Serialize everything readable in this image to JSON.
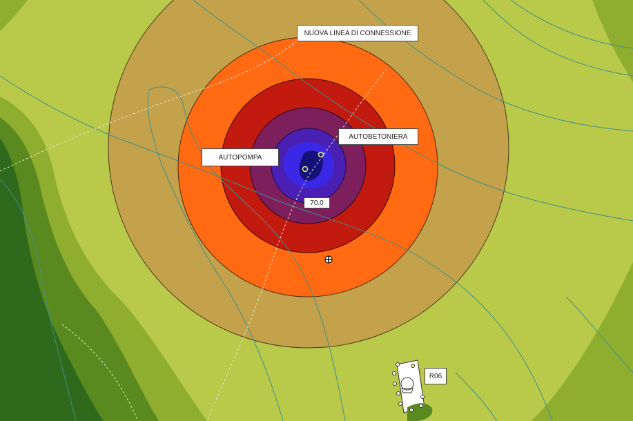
{
  "labels": {
    "connection_line": "NUOVA LINEA DI CONNESSIONE",
    "concrete_mixer": "AUTOBETONIERA",
    "concrete_pump": "AUTOPOMPA",
    "center_value": "70.0",
    "receptor": "R06"
  },
  "colors": {
    "terrain_light": "#b9c94a",
    "terrain_mid": "#8fae2f",
    "terrain_dark": "#5a8a1f",
    "terrain_deep": "#2f6a1c",
    "zone_tan": "#c4a24b",
    "zone_orange": "#ff6a12",
    "zone_red": "#c31a10",
    "zone_maroon": "#7e1f5d",
    "zone_violet": "#4a20b4",
    "zone_blue": "#3b28e6",
    "zone_navy": "#141278",
    "contour_line": "#3f8f8a"
  },
  "legend": []
}
